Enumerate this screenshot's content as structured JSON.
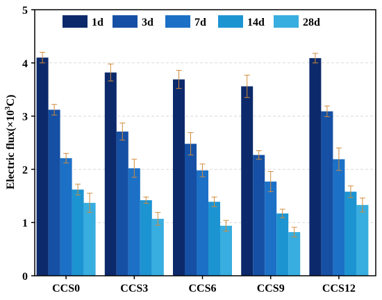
{
  "chart_data": {
    "type": "bar",
    "title": "",
    "xlabel": "",
    "ylabel_prefix": "Electric flux(×10",
    "ylabel_sup": "3",
    "ylabel_suffix": "C)",
    "ylim": [
      0,
      5
    ],
    "yticks": [
      "0",
      "1",
      "2",
      "3",
      "4",
      "5"
    ],
    "grid": true,
    "legend_position": "top",
    "categories": [
      "CCS0",
      "CCS3",
      "CCS6",
      "CCS9",
      "CCS12"
    ],
    "series": [
      {
        "name": "1d",
        "color": "#0c2a6b",
        "values": [
          4.1,
          3.82,
          3.69,
          3.56,
          4.09
        ],
        "errors": [
          0.1,
          0.16,
          0.17,
          0.21,
          0.09
        ]
      },
      {
        "name": "3d",
        "color": "#1650a4",
        "values": [
          3.12,
          2.71,
          2.48,
          2.27,
          3.09
        ],
        "errors": [
          0.1,
          0.16,
          0.21,
          0.08,
          0.1
        ]
      },
      {
        "name": "7d",
        "color": "#1c70c6",
        "values": [
          2.21,
          2.02,
          1.98,
          1.77,
          2.19
        ],
        "errors": [
          0.09,
          0.17,
          0.12,
          0.19,
          0.21
        ]
      },
      {
        "name": "14d",
        "color": "#1d94d2",
        "values": [
          1.62,
          1.42,
          1.39,
          1.17,
          1.58
        ],
        "errors": [
          0.1,
          0.06,
          0.09,
          0.08,
          0.11
        ]
      },
      {
        "name": "28d",
        "color": "#38addf",
        "values": [
          1.37,
          1.07,
          0.94,
          0.82,
          1.33
        ],
        "errors": [
          0.18,
          0.12,
          0.1,
          0.09,
          0.13
        ]
      }
    ],
    "error_bar_color": "#d18a3a"
  }
}
